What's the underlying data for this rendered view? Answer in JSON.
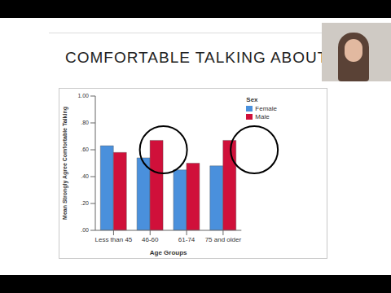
{
  "chart_data": {
    "type": "bar",
    "title": "COMFORTABLE TALKING ABOUT A",
    "x_label": "Age Groups",
    "y_label": "Mean Strongly Agree Comfortable Talking",
    "legend_title": "Sex",
    "categories": [
      "Less than 45",
      "46-60",
      "61-74",
      "75 and older"
    ],
    "series": [
      {
        "name": "Female",
        "color": "#4a90dc",
        "values": [
          0.63,
          0.54,
          0.45,
          0.48
        ]
      },
      {
        "name": "Male",
        "color": "#d0103a",
        "values": [
          0.58,
          0.67,
          0.5,
          0.67
        ]
      }
    ],
    "ylim": [
      0,
      1
    ],
    "yticks": [
      {
        "value": 0,
        "label": ".00"
      },
      {
        "value": 0.2,
        "label": ".20"
      },
      {
        "value": 0.4,
        "label": ".40"
      },
      {
        "value": 0.6,
        "label": ".60"
      },
      {
        "value": 0.8,
        "label": ".80"
      },
      {
        "value": 1,
        "label": "1.00"
      }
    ],
    "grid": false,
    "legend": "upper right"
  }
}
